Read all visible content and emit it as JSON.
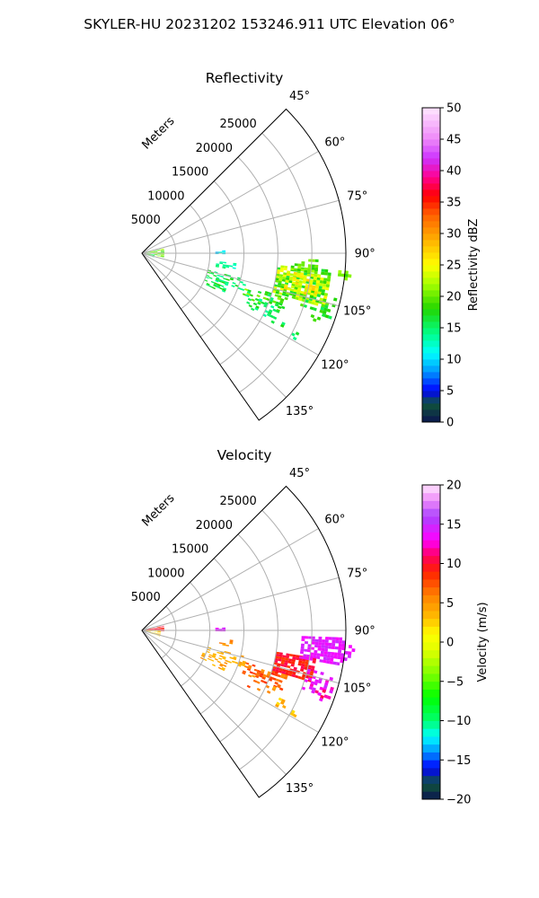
{
  "figure": {
    "title": "SKYLER-HU  20231202  153246.911 UTC Elevation 06°"
  },
  "chart_data": [
    {
      "type": "polar-sector",
      "title": "Reflectivity",
      "radial_axis_label": "Meters",
      "radial_ticks": [
        "5000",
        "10000",
        "15000",
        "20000",
        "25000"
      ],
      "radial_tick_values": [
        5000,
        10000,
        15000,
        20000,
        25000
      ],
      "rmax": 30000,
      "theta_range_deg": [
        45,
        145
      ],
      "theta_ticks": [
        "45°",
        "60°",
        "75°",
        "90°",
        "105°",
        "120°",
        "135°"
      ],
      "theta_tick_values": [
        45,
        60,
        75,
        90,
        105,
        120,
        135
      ],
      "grid": true,
      "colorbar": {
        "label": "Reflectivity dBZ",
        "range": [
          0,
          50
        ],
        "ticks": [
          "0",
          "5",
          "10",
          "15",
          "20",
          "25",
          "30",
          "35",
          "40",
          "45",
          "50"
        ],
        "tick_values": [
          0,
          5,
          10,
          15,
          20,
          25,
          30,
          35,
          40,
          45,
          50
        ],
        "levels": 50,
        "color_stops": [
          [
            0,
            "#0b1450"
          ],
          [
            3,
            "#10553a"
          ],
          [
            5,
            "#0000ff"
          ],
          [
            8,
            "#0094ff"
          ],
          [
            11,
            "#00ffff"
          ],
          [
            14,
            "#00ff8c"
          ],
          [
            18,
            "#22d600"
          ],
          [
            22,
            "#a8ff00"
          ],
          [
            25,
            "#ffff00"
          ],
          [
            29,
            "#ffb000"
          ],
          [
            33,
            "#ff6000"
          ],
          [
            36,
            "#ff0000"
          ],
          [
            39,
            "#ff0090"
          ],
          [
            42,
            "#cc33ff"
          ],
          [
            45,
            "#ee88f8"
          ],
          [
            50,
            "#ffe6ff"
          ]
        ]
      },
      "regions": [
        {
          "az": [
            78,
            100
          ],
          "r": [
            300,
            3200
          ],
          "val": [
            16,
            24
          ],
          "density": 0.55
        },
        {
          "az": [
            96,
            108
          ],
          "r": [
            400,
            1800
          ],
          "val": [
            12,
            18
          ],
          "density": 0.35
        },
        {
          "az": [
            88,
            90
          ],
          "r": [
            10800,
            12000
          ],
          "val": [
            8,
            12
          ],
          "density": 0.7
        },
        {
          "az": [
            96,
            100
          ],
          "r": [
            11000,
            14000
          ],
          "val": [
            12,
            16
          ],
          "density": 0.4
        },
        {
          "az": [
            104,
            110
          ],
          "r": [
            10000,
            16000
          ],
          "val": [
            13,
            18
          ],
          "density": 0.4
        },
        {
          "az": [
            110,
            116
          ],
          "r": [
            9500,
            13500
          ],
          "val": [
            13,
            18
          ],
          "density": 0.35
        },
        {
          "az": [
            107,
            113
          ],
          "r": [
            16000,
            22500
          ],
          "val": [
            14,
            22
          ],
          "density": 0.45
        },
        {
          "az": [
            111,
            118
          ],
          "r": [
            17000,
            22000
          ],
          "val": [
            13,
            18
          ],
          "density": 0.25
        },
        {
          "az": [
            95,
            106
          ],
          "r": [
            20000,
            28000
          ],
          "val": [
            16,
            26
          ],
          "density": 0.72
        },
        {
          "az": [
            97,
            104
          ],
          "r": [
            21500,
            26500
          ],
          "val": [
            22,
            28
          ],
          "density": 0.5
        },
        {
          "az": [
            92,
            96
          ],
          "r": [
            22000,
            26000
          ],
          "val": [
            18,
            22
          ],
          "density": 0.5
        },
        {
          "az": [
            103,
            109
          ],
          "r": [
            24000,
            29500
          ],
          "val": [
            15,
            20
          ],
          "density": 0.32
        },
        {
          "az": [
            94,
            97
          ],
          "r": [
            29000,
            31000
          ],
          "val": [
            18,
            22
          ],
          "density": 0.35
        },
        {
          "az": [
            108,
            112
          ],
          "r": [
            26500,
            29000
          ],
          "val": [
            15,
            19
          ],
          "density": 0.2
        },
        {
          "az": [
            116,
            119
          ],
          "r": [
            22000,
            26000
          ],
          "val": [
            14,
            18
          ],
          "density": 0.15
        }
      ]
    },
    {
      "type": "polar-sector",
      "title": "Velocity",
      "radial_axis_label": "Meters",
      "radial_ticks": [
        "5000",
        "10000",
        "15000",
        "20000",
        "25000"
      ],
      "radial_tick_values": [
        5000,
        10000,
        15000,
        20000,
        25000
      ],
      "rmax": 30000,
      "theta_range_deg": [
        45,
        145
      ],
      "theta_ticks": [
        "45°",
        "60°",
        "75°",
        "90°",
        "105°",
        "120°",
        "135°"
      ],
      "theta_tick_values": [
        45,
        60,
        75,
        90,
        105,
        120,
        135
      ],
      "grid": true,
      "colorbar": {
        "label": "Velocity (m/s)",
        "range": [
          -20,
          20
        ],
        "ticks": [
          "−20",
          "−15",
          "−10",
          "−5",
          "0",
          "5",
          "10",
          "15",
          "20"
        ],
        "tick_values": [
          -20,
          -15,
          -10,
          -5,
          0,
          5,
          10,
          15,
          20
        ],
        "levels": 40,
        "color_stops": [
          [
            -20,
            "#0b1450"
          ],
          [
            -18,
            "#10553a"
          ],
          [
            -16,
            "#0000ff"
          ],
          [
            -14,
            "#0090ff"
          ],
          [
            -12,
            "#00ffff"
          ],
          [
            -10,
            "#00ff70"
          ],
          [
            -7,
            "#00ff00"
          ],
          [
            -4,
            "#80ff00"
          ],
          [
            -1,
            "#e0ff00"
          ],
          [
            1,
            "#ffff00"
          ],
          [
            3,
            "#ffc000"
          ],
          [
            6,
            "#ff8000"
          ],
          [
            9,
            "#ff2000"
          ],
          [
            11,
            "#ff0060"
          ],
          [
            13,
            "#ff00ff"
          ],
          [
            16,
            "#aa44ff"
          ],
          [
            18,
            "#ee88f8"
          ],
          [
            20,
            "#ffe6ff"
          ]
        ]
      },
      "regions": [
        {
          "az": [
            78,
            92
          ],
          "r": [
            300,
            3200
          ],
          "val": [
            8,
            11
          ],
          "density": 0.6
        },
        {
          "az": [
            92,
            108
          ],
          "r": [
            300,
            2500
          ],
          "val": [
            1,
            4
          ],
          "density": 0.45
        },
        {
          "az": [
            88,
            90
          ],
          "r": [
            10800,
            12000
          ],
          "val": [
            13,
            15
          ],
          "density": 0.7
        },
        {
          "az": [
            96,
            100
          ],
          "r": [
            11000,
            14000
          ],
          "val": [
            4,
            7
          ],
          "density": 0.4
        },
        {
          "az": [
            104,
            110
          ],
          "r": [
            10000,
            16000
          ],
          "val": [
            3,
            5
          ],
          "density": 0.35
        },
        {
          "az": [
            110,
            116
          ],
          "r": [
            9500,
            13500
          ],
          "val": [
            3,
            6
          ],
          "density": 0.35
        },
        {
          "az": [
            107,
            113
          ],
          "r": [
            16000,
            22500
          ],
          "val": [
            5,
            9
          ],
          "density": 0.45
        },
        {
          "az": [
            111,
            118
          ],
          "r": [
            17000,
            22000
          ],
          "val": [
            4,
            8
          ],
          "density": 0.25
        },
        {
          "az": [
            99,
            107
          ],
          "r": [
            20000,
            26000
          ],
          "val": [
            8,
            11
          ],
          "density": 0.72
        },
        {
          "az": [
            92,
            100
          ],
          "r": [
            23500,
            30000
          ],
          "val": [
            13,
            15
          ],
          "density": 0.72
        },
        {
          "az": [
            94,
            99
          ],
          "r": [
            30000,
            31500
          ],
          "val": [
            13,
            15
          ],
          "density": 0.4
        },
        {
          "az": [
            103,
            110
          ],
          "r": [
            25000,
            29500
          ],
          "val": [
            12,
            15
          ],
          "density": 0.3
        },
        {
          "az": [
            108,
            112
          ],
          "r": [
            26500,
            29000
          ],
          "val": [
            10,
            14
          ],
          "density": 0.2
        },
        {
          "az": [
            116,
            119
          ],
          "r": [
            22000,
            26000
          ],
          "val": [
            2,
            5
          ],
          "density": 0.15
        }
      ]
    }
  ]
}
